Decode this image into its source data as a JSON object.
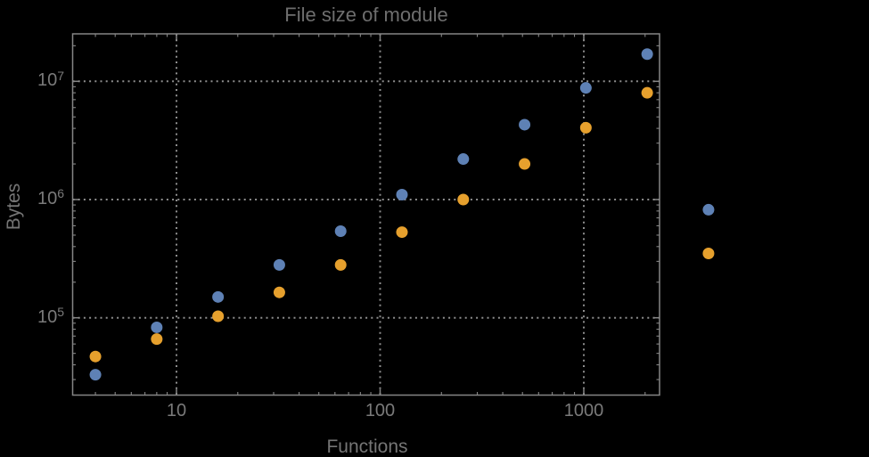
{
  "chart": {
    "title": "File size of module",
    "xlabel": "Functions",
    "ylabel": "Bytes",
    "x_ticks": [
      {
        "label": "10"
      },
      {
        "label": "100"
      },
      {
        "label": "1000"
      }
    ],
    "y_ticks": [
      {
        "base": "10",
        "exp": "5"
      },
      {
        "base": "10",
        "exp": "6"
      },
      {
        "base": "10",
        "exp": "7"
      }
    ]
  },
  "chart_data": {
    "type": "scatter",
    "title": "File size of module",
    "xlabel": "Functions",
    "ylabel": "Bytes",
    "x_scale": "log",
    "y_scale": "log",
    "xlim": [
      3.2,
      2350
    ],
    "ylim": [
      21000,
      25000000
    ],
    "grid": "dotted",
    "legend": "none",
    "x": [
      4,
      8,
      16,
      32,
      64,
      128,
      256,
      512,
      1024,
      2048,
      4096
    ],
    "series": [
      {
        "name": "series-blue",
        "color": "#5e81b5",
        "values": [
          33000,
          83000,
          150000,
          280000,
          540000,
          1100000,
          2200000,
          4300000,
          8800000,
          17000000,
          820000
        ]
      },
      {
        "name": "series-orange",
        "color": "#e6a02d",
        "values": [
          47000,
          66000,
          103000,
          164000,
          280000,
          530000,
          1000000,
          2000000,
          4050000,
          8000000,
          350000
        ]
      }
    ],
    "x_gridlines": [
      10,
      100,
      1000
    ],
    "y_gridlines": [
      100000,
      1000000,
      10000000
    ]
  },
  "colors": {
    "background": "#000000",
    "frame": "#858585",
    "tick": "#858585",
    "grid": "#8d8d8d",
    "title_text": "#6e6e6e",
    "axis_label_text": "#757575",
    "tick_label_text": "#7a7a7a",
    "series_blue": "#5e81b5",
    "series_orange": "#e6a02d"
  }
}
